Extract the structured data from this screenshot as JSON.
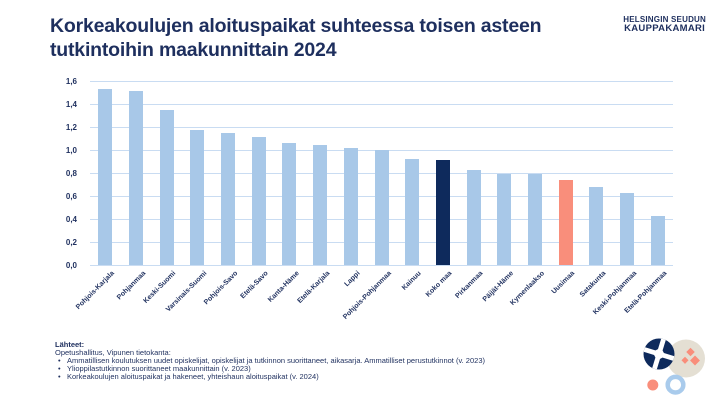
{
  "header": {
    "title_lines": [
      "Korkeakoulujen aloituspaikat suhteessa toisen asteen",
      "tutkintoihin maakunnittain 2024"
    ]
  },
  "brand": {
    "line1": "HELSINGIN SEUDUN",
    "line2": "KAUPPAKAMARI"
  },
  "chart_data": {
    "type": "bar",
    "title": "Korkeakoulujen aloituspaikat suhteessa toisen asteen tutkintoihin maakunnittain 2024",
    "categories": [
      "Pohjois-Karjala",
      "Pohjanmaa",
      "Keski-Suomi",
      "Varsinais-Suomi",
      "Pohjois-Savo",
      "Etelä-Savo",
      "Kanta-Häme",
      "Etelä-Karjala",
      "Lappi",
      "Pohjois-Pohjanmaa",
      "Kainuu",
      "Koko maa",
      "Pirkanmaa",
      "Päijät-Häme",
      "Kymenlaakso",
      "Uusimaa",
      "Satakunta",
      "Keski-Pohjanmaa",
      "Etelä-Pohjanmaa"
    ],
    "values": [
      1.53,
      1.51,
      1.35,
      1.17,
      1.15,
      1.11,
      1.06,
      1.04,
      1.02,
      1.0,
      0.92,
      0.91,
      0.83,
      0.79,
      0.79,
      0.74,
      0.68,
      0.63,
      0.43
    ],
    "bar_styles": [
      "default",
      "default",
      "default",
      "default",
      "default",
      "default",
      "default",
      "default",
      "default",
      "default",
      "default",
      "dark",
      "default",
      "default",
      "default",
      "accent",
      "default",
      "default",
      "default"
    ],
    "highlights": {
      "dark": "Koko maa",
      "accent": "Uusimaa"
    },
    "xlabel": "",
    "ylabel": "",
    "ylim": [
      0,
      1.6
    ],
    "ytick_values": [
      0,
      0.2,
      0.4,
      0.6,
      0.8,
      1.0,
      1.2,
      1.4,
      1.6
    ],
    "ytick_labels": [
      "0,0",
      "0,2",
      "0,4",
      "0,6",
      "0,8",
      "1,0",
      "1,2",
      "1,4",
      "1,6"
    ],
    "grid": true,
    "legend": false
  },
  "footer": {
    "heading": "Lähteet:",
    "intro": "Opetushallitus, Vipunen tietokanta:",
    "bullet_glyph": "•",
    "bullets": [
      "Ammatillisen koulutuksen uudet opiskelijat, opiskelijat ja tutkinnon suorittaneet, aikasarja. Ammatilliset perustutkinnot (v. 2023)",
      "Ylioppilastutkinnon suorittaneet maakunnittain (v. 2023)",
      "Korkeakoulujen aloituspaikat ja hakeneet, yhteishaun aloituspaikat (v. 2024)"
    ]
  },
  "colors": {
    "text_navy": "#1e2f5e",
    "bar_default": "#a8c8e8",
    "bar_dark": "#0e2a5c",
    "bar_accent": "#f98e7b",
    "grid_line": "#c9dcf2",
    "beige": "#e4dfd3",
    "ring_blue": "#a9cbec"
  }
}
